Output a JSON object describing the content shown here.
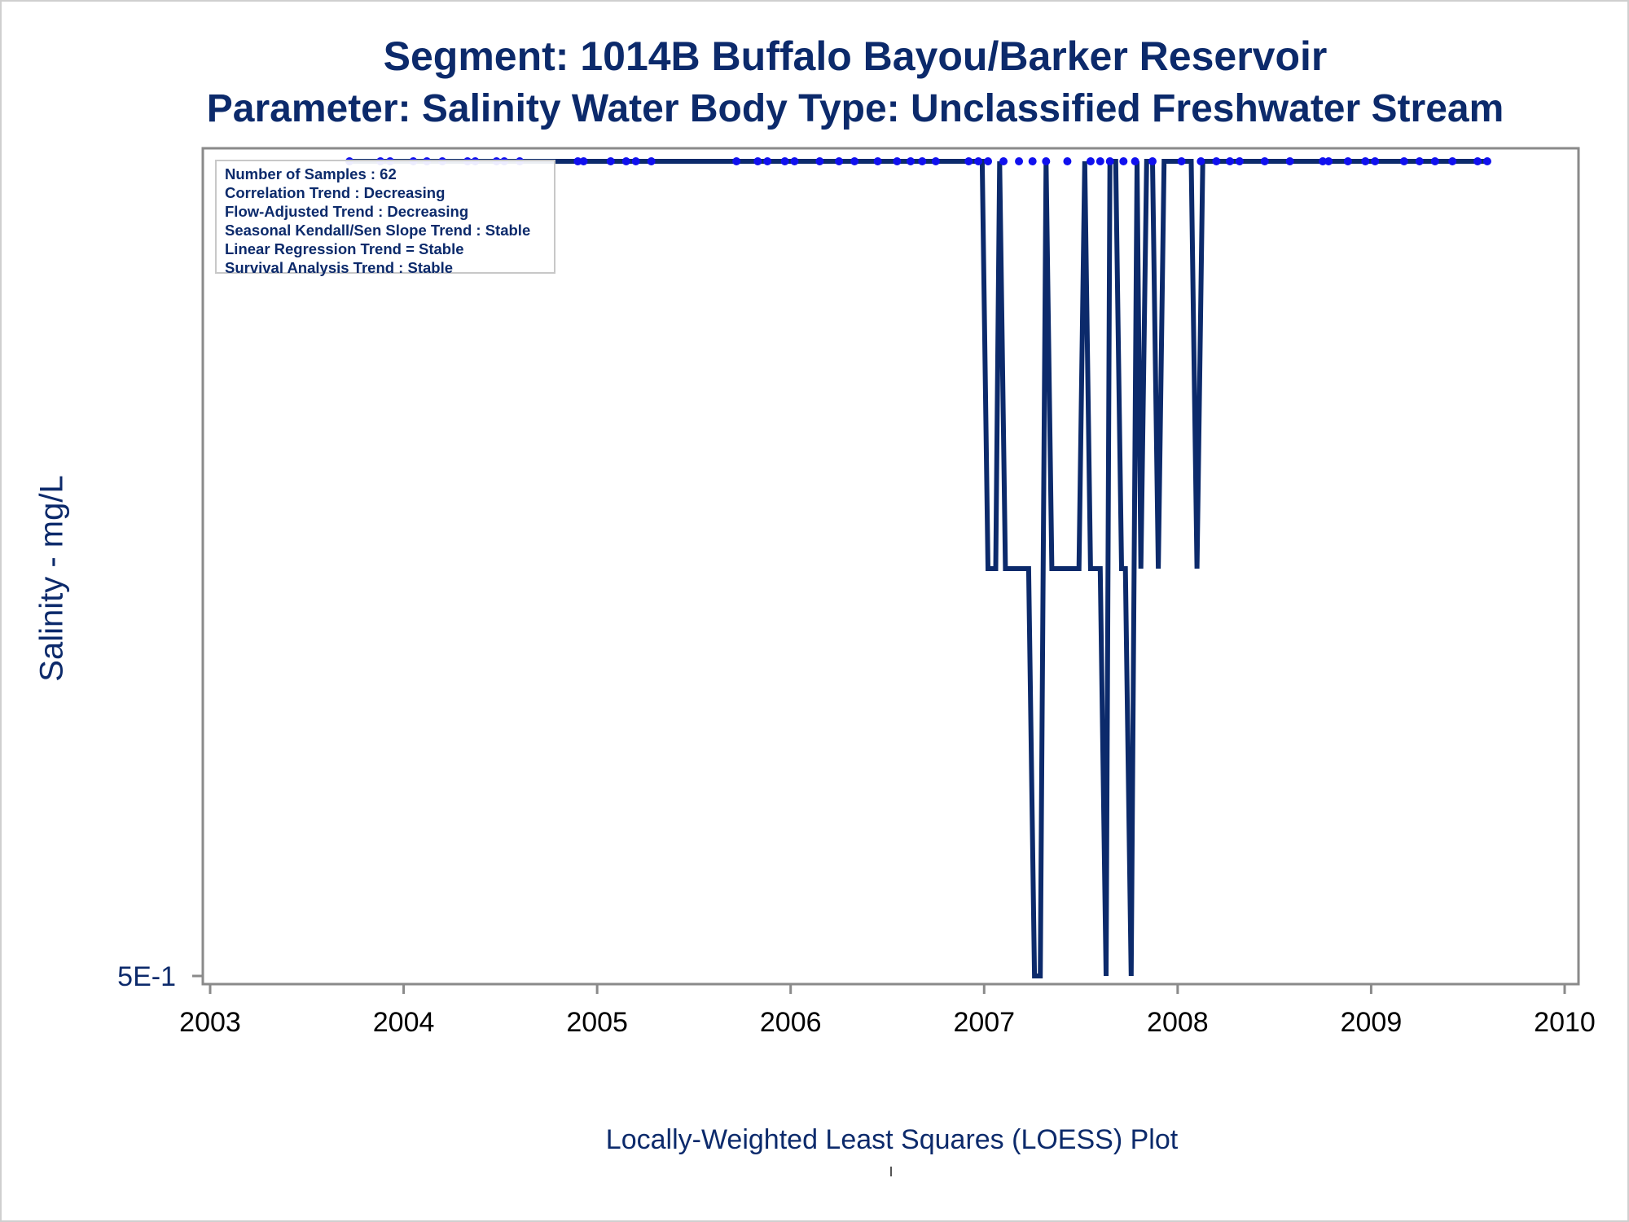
{
  "title": "Segment: 1014B  Buffalo Bayou/Barker Reservoir",
  "subtitle": "Parameter: Salinity   Water Body Type: Unclassified Freshwater Stream",
  "ylabel": "Salinity - mg/L",
  "footer": "Locally-Weighted Least Squares (LOESS) Plot",
  "footer_mark": "'",
  "legend": [
    "Number of Samples : 62",
    "Correlation Trend : Decreasing",
    "Flow-Adjusted Trend : Decreasing",
    "Seasonal Kendall/Sen Slope Trend : Stable",
    "Linear Regression Trend = Stable",
    "Survival Analysis Trend : Stable"
  ],
  "colors": {
    "text": "#0c2a6b",
    "line": "#0c2a6b",
    "points": "#1010ee",
    "axis": "#8a8a8a"
  },
  "chart_data": {
    "type": "line",
    "title": "Segment: 1014B  Buffalo Bayou/Barker Reservoir",
    "xlabel": "",
    "ylabel": "Salinity - mg/L",
    "xlim": [
      2003,
      2010
    ],
    "x_ticks": [
      "2003",
      "2004",
      "2005",
      "2006",
      "2007",
      "2008",
      "2009",
      "2010"
    ],
    "y_ticks": [
      {
        "value": 0.5,
        "label": "5E-1"
      }
    ],
    "ylim": [
      0.5,
      1.0
    ],
    "grid": false,
    "series": [
      {
        "kind": "points",
        "x": [
          2003.72,
          2003.88,
          2003.93,
          2004.05,
          2004.12,
          2004.2,
          2004.33,
          2004.37,
          2004.48,
          2004.52,
          2004.6,
          2004.9,
          2004.93,
          2005.07,
          2005.15,
          2005.2,
          2005.28,
          2005.72,
          2005.83,
          2005.88,
          2005.97,
          2006.02,
          2006.15,
          2006.25,
          2006.33,
          2006.45,
          2006.55,
          2006.62,
          2006.68,
          2006.75,
          2006.92,
          2006.97,
          2007.02,
          2007.1,
          2007.18,
          2007.25,
          2007.32,
          2007.43,
          2007.55,
          2007.6,
          2007.65,
          2007.72,
          2007.78,
          2007.87,
          2008.02,
          2008.12,
          2008.2,
          2008.27,
          2008.32,
          2008.45,
          2008.58,
          2008.75,
          2008.78,
          2008.88,
          2008.97,
          2009.02,
          2009.17,
          2009.25,
          2009.33,
          2009.42,
          2009.55,
          2009.6
        ],
        "y": [
          1,
          1,
          1,
          1,
          1,
          1,
          1,
          1,
          1,
          1,
          1,
          1,
          1,
          1,
          1,
          1,
          1,
          1,
          1,
          1,
          1,
          1,
          1,
          1,
          1,
          1,
          1,
          1,
          1,
          1,
          1,
          1,
          1,
          1,
          1,
          1,
          1,
          1,
          1,
          1,
          1,
          1,
          1,
          1,
          1,
          1,
          1,
          1,
          1,
          1,
          1,
          1,
          1,
          1,
          1,
          1,
          1,
          1,
          1,
          1,
          1,
          1
        ]
      },
      {
        "kind": "line",
        "x": [
          2003.72,
          2006.99,
          2007.02,
          2007.06,
          2007.08,
          2007.11,
          2007.23,
          2007.26,
          2007.29,
          2007.32,
          2007.35,
          2007.49,
          2007.52,
          2007.55,
          2007.6,
          2007.63,
          2007.65,
          2007.68,
          2007.71,
          2007.73,
          2007.76,
          2007.79,
          2007.81,
          2007.84,
          2007.87,
          2007.9,
          2007.93,
          2007.96,
          2008.0,
          2008.07,
          2008.1,
          2008.13,
          2009.6
        ],
        "y": [
          1.0,
          1.0,
          0.75,
          0.75,
          1.0,
          0.75,
          0.75,
          0.5,
          0.5,
          1.0,
          0.75,
          0.75,
          1.0,
          0.75,
          0.75,
          0.5,
          1.0,
          1.0,
          0.75,
          0.75,
          0.5,
          1.0,
          0.75,
          1.0,
          1.0,
          0.75,
          1.0,
          1.0,
          1.0,
          1.0,
          0.75,
          1.0,
          1.0
        ]
      }
    ]
  }
}
